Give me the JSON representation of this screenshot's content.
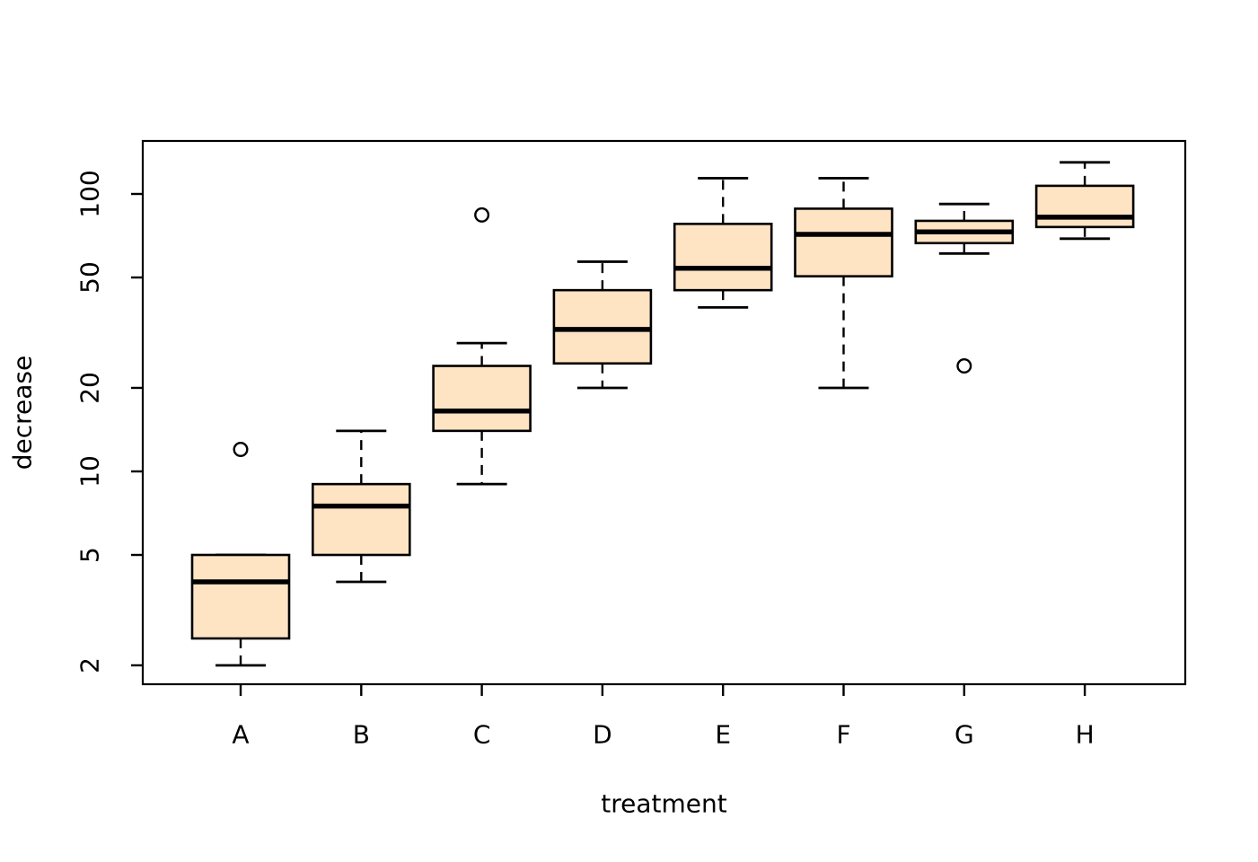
{
  "chart_data": {
    "type": "boxplot",
    "title": "",
    "xlabel": "treatment",
    "ylabel": "decrease",
    "y_scale": "log10",
    "grid": false,
    "legend": "none",
    "y_ticks": [
      2,
      5,
      10,
      20,
      50,
      100
    ],
    "y_tick_labels": [
      "2",
      "5",
      "10",
      "20",
      "50",
      "100"
    ],
    "ylim_displayed": [
      1.7,
      155
    ],
    "categories": [
      "A",
      "B",
      "C",
      "D",
      "E",
      "F",
      "G",
      "H"
    ],
    "series": [
      {
        "treatment": "A",
        "whisker_low": 2,
        "q1": 2.5,
        "median": 4,
        "q3": 5,
        "whisker_high": 5,
        "outliers": [
          12
        ]
      },
      {
        "treatment": "B",
        "whisker_low": 4,
        "q1": 5,
        "median": 7.5,
        "q3": 9,
        "whisker_high": 14,
        "outliers": []
      },
      {
        "treatment": "C",
        "whisker_low": 9,
        "q1": 14,
        "median": 16.5,
        "q3": 24,
        "whisker_high": 29,
        "outliers": [
          84
        ]
      },
      {
        "treatment": "D",
        "whisker_low": 20,
        "q1": 24.5,
        "median": 32.5,
        "q3": 45,
        "whisker_high": 57,
        "outliers": []
      },
      {
        "treatment": "E",
        "whisker_low": 39,
        "q1": 45,
        "median": 54,
        "q3": 78,
        "whisker_high": 114,
        "outliers": []
      },
      {
        "treatment": "F",
        "whisker_low": 20,
        "q1": 50.5,
        "median": 71.5,
        "q3": 88.5,
        "whisker_high": 114,
        "outliers": []
      },
      {
        "treatment": "G",
        "whisker_low": 61,
        "q1": 66.5,
        "median": 73,
        "q3": 80,
        "whisker_high": 92,
        "outliers": [
          24
        ]
      },
      {
        "treatment": "H",
        "whisker_low": 69,
        "q1": 76,
        "median": 82.5,
        "q3": 107,
        "whisker_high": 130,
        "outliers": []
      }
    ],
    "colors": {
      "box_fill": "#FFE4C4",
      "line": "#000000",
      "background": "#FFFFFF"
    }
  }
}
